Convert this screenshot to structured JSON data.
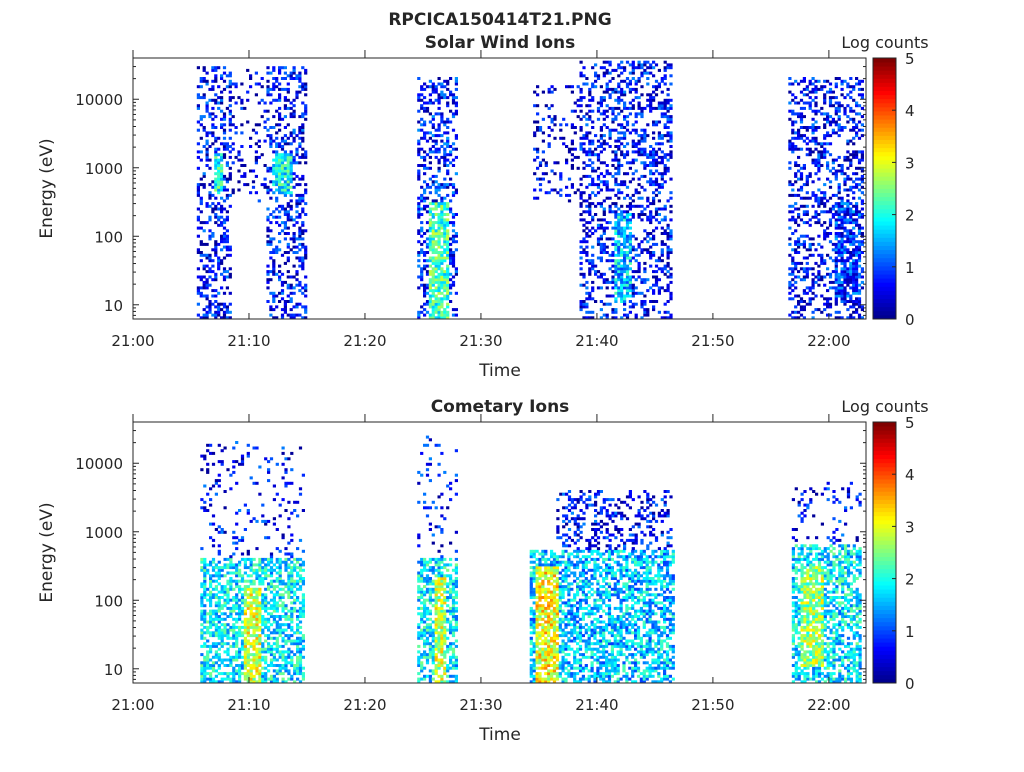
{
  "chart_data": {
    "type": "heatmap",
    "title": "RPCICA150414T21.PNG",
    "colormap": [
      "#00008f",
      "#0000ff",
      "#0080ff",
      "#00ffff",
      "#80ff80",
      "#ffff00",
      "#ff8000",
      "#ff0000",
      "#800000"
    ],
    "x_ticks": [
      "21:00",
      "21:10",
      "21:20",
      "21:30",
      "21:40",
      "21:50",
      "22:00"
    ],
    "x_tick_minutes": [
      0,
      10,
      20,
      30,
      40,
      50,
      60
    ],
    "xlim_minutes": [
      0,
      63.2
    ],
    "y_ticks": [
      "10",
      "100",
      "1000",
      "10000"
    ],
    "y_tick_values": [
      10,
      100,
      1000,
      10000
    ],
    "ylim": [
      6.2,
      40000
    ],
    "colorbar": {
      "label": "Log counts",
      "ticks": [
        "0",
        "1",
        "2",
        "3",
        "4",
        "5"
      ],
      "range": [
        0,
        5
      ]
    },
    "panels": [
      {
        "title": "Solar Wind Ions",
        "xlabel": "Time",
        "ylabel": "Energy (eV)",
        "clusters": [
          {
            "t": [
              5.5,
              8.5
            ],
            "e": [
              6,
              30000
            ],
            "level": 0.6,
            "density": 0.35,
            "hot": [
              6.8,
              7.6,
              400,
              1500,
              2.0
            ]
          },
          {
            "t": [
              8.5,
              11.5
            ],
            "e": [
              300,
              30000
            ],
            "level": 0.4,
            "density": 0.12,
            "hot": null
          },
          {
            "t": [
              11.5,
              14.8
            ],
            "e": [
              6,
              30000
            ],
            "level": 0.6,
            "density": 0.35,
            "hot": [
              12.0,
              13.5,
              400,
              1500,
              1.9
            ]
          },
          {
            "t": [
              24.5,
              27.8
            ],
            "e": [
              6,
              20000
            ],
            "level": 0.7,
            "density": 0.35,
            "hot": [
              25.5,
              27.0,
              6,
              300,
              2.2
            ]
          },
          {
            "t": [
              34.5,
              38.5
            ],
            "e": [
              300,
              15000
            ],
            "level": 0.4,
            "density": 0.15,
            "hot": null
          },
          {
            "t": [
              38.5,
              46.5
            ],
            "e": [
              6,
              35000
            ],
            "level": 0.6,
            "density": 0.35,
            "hot": [
              41.5,
              42.8,
              10,
              200,
              1.6
            ]
          },
          {
            "t": [
              56.5,
              62.8
            ],
            "e": [
              6,
              20000
            ],
            "level": 0.6,
            "density": 0.35,
            "hot": [
              60.5,
              62.5,
              10,
              300,
              0.8
            ]
          }
        ]
      },
      {
        "title": "Cometary Ions",
        "xlabel": "Time",
        "ylabel": "Energy (eV)",
        "clusters": [
          {
            "t": [
              5.8,
              14.8
            ],
            "e": [
              6,
              400
            ],
            "level": 1.8,
            "density": 0.6,
            "hot": [
              9.5,
              11.0,
              6,
              150,
              2.9
            ]
          },
          {
            "t": [
              5.8,
              14.8
            ],
            "e": [
              400,
              20000
            ],
            "level": 0.6,
            "density": 0.12,
            "hot": null
          },
          {
            "t": [
              24.5,
              27.8
            ],
            "e": [
              6,
              400
            ],
            "level": 1.8,
            "density": 0.6,
            "hot": [
              25.8,
              26.8,
              6,
              200,
              2.8
            ]
          },
          {
            "t": [
              24.5,
              27.8
            ],
            "e": [
              400,
              25000
            ],
            "level": 0.6,
            "density": 0.1,
            "hot": null
          },
          {
            "t": [
              34.2,
              46.5
            ],
            "e": [
              6,
              500
            ],
            "level": 1.6,
            "density": 0.6,
            "hot": [
              34.5,
              36.5,
              6,
              300,
              3.1
            ]
          },
          {
            "t": [
              36.5,
              46.5
            ],
            "e": [
              500,
              4000
            ],
            "level": 0.6,
            "density": 0.3,
            "hot": null
          },
          {
            "t": [
              56.8,
              62.8
            ],
            "e": [
              6,
              600
            ],
            "level": 1.8,
            "density": 0.6,
            "hot": [
              57.5,
              59.5,
              10,
              300,
              2.6
            ]
          },
          {
            "t": [
              56.8,
              62.8
            ],
            "e": [
              600,
              5000
            ],
            "level": 0.6,
            "density": 0.12,
            "hot": null
          }
        ]
      }
    ]
  }
}
